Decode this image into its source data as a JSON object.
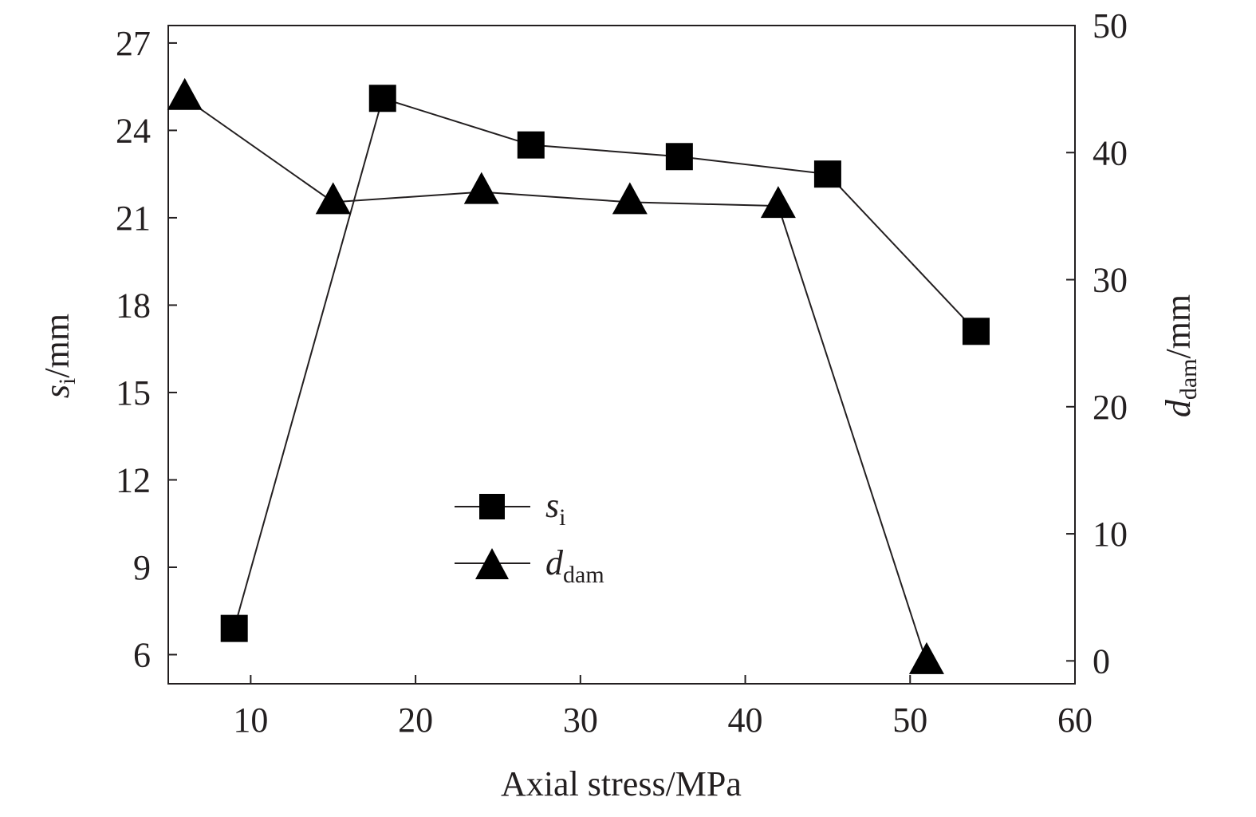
{
  "chart_data": {
    "type": "line",
    "xlabel": "Axial stress/MPa",
    "ylabel": {
      "main": "s",
      "sub": "i",
      "unit": "/mm"
    },
    "y2label": {
      "main": "d",
      "sub": "dam",
      "unit": "/mm"
    },
    "xlim": [
      5,
      60
    ],
    "ylim": [
      5,
      27.6
    ],
    "y2lim": [
      -1.8,
      50
    ],
    "xticks": [
      10,
      20,
      30,
      40,
      50,
      60
    ],
    "yticks": [
      6,
      9,
      12,
      15,
      18,
      21,
      24,
      27
    ],
    "y2ticks": [
      0,
      10,
      20,
      30,
      40,
      50
    ],
    "legend_position": "center",
    "grid": false,
    "series": [
      {
        "name": "s",
        "name_sub": "i",
        "axis": "left",
        "marker": "square",
        "x": [
          9,
          18,
          27,
          36,
          45,
          54
        ],
        "values": [
          6.9,
          25.1,
          23.5,
          23.1,
          22.5,
          17.1
        ]
      },
      {
        "name": "d",
        "name_sub": "dam",
        "axis": "right",
        "marker": "triangle",
        "x": [
          6,
          15,
          24,
          33,
          42,
          51
        ],
        "values": [
          44.3,
          36.1,
          36.9,
          36.1,
          35.8,
          -0.1
        ]
      }
    ]
  }
}
